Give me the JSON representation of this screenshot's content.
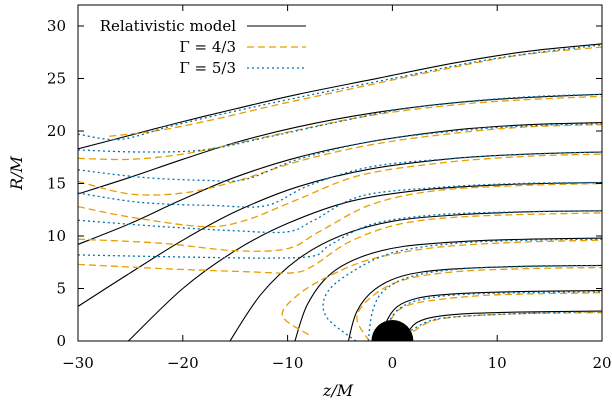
{
  "chart_data": {
    "type": "line",
    "xlabel": "z/M",
    "ylabel": "R/M",
    "xlim": [
      -30,
      20
    ],
    "ylim": [
      0,
      32
    ],
    "xticks": [
      -30,
      -20,
      -10,
      0,
      10,
      20
    ],
    "yticks": [
      0,
      5,
      10,
      15,
      20,
      25,
      30
    ],
    "xtick_labels": [
      "−30",
      "−20",
      "−10",
      "0",
      "10",
      "20"
    ],
    "ytick_labels": [
      "0",
      "5",
      "10",
      "15",
      "20",
      "25",
      "30"
    ],
    "grid": false,
    "legend_position": "top-left",
    "black_hole": {
      "center": [
        0,
        0
      ],
      "radius": 2,
      "color": "#000000"
    },
    "series": [
      {
        "name": "Relativistic model",
        "color": "#000000",
        "dash": "solid",
        "curves": [
          [
            [
              1.3,
              0
            ],
            [
              1.6,
              1.0
            ],
            [
              2.4,
              1.8
            ],
            [
              4,
              2.3
            ],
            [
              7,
              2.6
            ],
            [
              12,
              2.75
            ],
            [
              20,
              2.85
            ]
          ],
          [
            [
              -1.2,
              0
            ],
            [
              -0.6,
              1.8
            ],
            [
              0.5,
              3.3
            ],
            [
              2.5,
              4.1
            ],
            [
              6,
              4.5
            ],
            [
              12,
              4.7
            ],
            [
              20,
              4.8
            ]
          ],
          [
            [
              -4.2,
              0
            ],
            [
              -3.4,
              2.8
            ],
            [
              -1.7,
              4.9
            ],
            [
              1,
              6.2
            ],
            [
              5,
              6.8
            ],
            [
              12,
              7.1
            ],
            [
              20,
              7.2
            ]
          ],
          [
            [
              -9.3,
              0
            ],
            [
              -8.1,
              3.5
            ],
            [
              -6,
              6.3
            ],
            [
              -3,
              8
            ],
            [
              1,
              9
            ],
            [
              7,
              9.5
            ],
            [
              13,
              9.7
            ],
            [
              20,
              9.8
            ]
          ],
          [
            [
              -15.5,
              0
            ],
            [
              -12.5,
              4.5
            ],
            [
              -9,
              7.8
            ],
            [
              -5,
              10
            ],
            [
              0,
              11.4
            ],
            [
              6,
              12
            ],
            [
              13,
              12.3
            ],
            [
              20,
              12.4
            ]
          ],
          [
            [
              -25.2,
              0
            ],
            [
              -20,
              5
            ],
            [
              -15,
              8.6
            ],
            [
              -10,
              11.2
            ],
            [
              -4,
              13.3
            ],
            [
              3,
              14.4
            ],
            [
              11,
              14.9
            ],
            [
              20,
              15.1
            ]
          ],
          [
            [
              -30,
              3.3
            ],
            [
              -25,
              6.5
            ],
            [
              -20,
              9.6
            ],
            [
              -15,
              12.3
            ],
            [
              -9,
              14.7
            ],
            [
              -2,
              16.4
            ],
            [
              6,
              17.4
            ],
            [
              13,
              17.8
            ],
            [
              20,
              18
            ]
          ],
          [
            [
              -30,
              9.2
            ],
            [
              -25,
              11.2
            ],
            [
              -20,
              13.5
            ],
            [
              -15,
              15.6
            ],
            [
              -9,
              17.5
            ],
            [
              -2,
              19
            ],
            [
              6,
              20.1
            ],
            [
              13,
              20.6
            ],
            [
              20,
              20.8
            ]
          ],
          [
            [
              -30,
              14
            ],
            [
              -25,
              15.6
            ],
            [
              -20,
              17.3
            ],
            [
              -15,
              18.9
            ],
            [
              -9,
              20.4
            ],
            [
              -2,
              21.7
            ],
            [
              6,
              22.7
            ],
            [
              13,
              23.2
            ],
            [
              20,
              23.5
            ]
          ],
          [
            [
              -30,
              18.3
            ],
            [
              -25,
              19.6
            ],
            [
              -20,
              20.9
            ],
            [
              -15,
              22.1
            ],
            [
              -9,
              23.5
            ],
            [
              -2,
              24.9
            ],
            [
              6,
              26.5
            ],
            [
              13,
              27.6
            ],
            [
              20,
              28.3
            ]
          ]
        ]
      },
      {
        "name": "Γ = 4/3",
        "color": "#e69f00",
        "dash": "dashed",
        "curves": [
          [
            [
              2,
              0.9
            ],
            [
              3.5,
              1.8
            ],
            [
              6,
              2.3
            ],
            [
              12,
              2.6
            ],
            [
              20,
              2.7
            ]
          ],
          [
            [
              -0.7,
              0
            ],
            [
              -0.2,
              1.9
            ],
            [
              1,
              3.2
            ],
            [
              4,
              3.9
            ],
            [
              10,
              4.4
            ],
            [
              20,
              4.6
            ]
          ],
          [
            [
              -2.2,
              0
            ],
            [
              -3.4,
              2.2
            ],
            [
              -2,
              4.2
            ],
            [
              1,
              5.8
            ],
            [
              6,
              6.6
            ],
            [
              13,
              6.9
            ],
            [
              20,
              7
            ]
          ],
          [
            [
              -8,
              0.6
            ],
            [
              -10.5,
              2.4
            ],
            [
              -9,
              4.4
            ],
            [
              -6,
              6.2
            ],
            [
              -2,
              7.8
            ],
            [
              4,
              8.9
            ],
            [
              12,
              9.4
            ],
            [
              20,
              9.6
            ]
          ],
          [
            [
              -30,
              7.3
            ],
            [
              -22,
              6.9
            ],
            [
              -14,
              6.6
            ],
            [
              -9.5,
              6.5
            ],
            [
              -7.5,
              7.2
            ],
            [
              -4,
              9.5
            ],
            [
              1,
              11.2
            ],
            [
              8,
              11.9
            ],
            [
              20,
              12.2
            ]
          ],
          [
            [
              -30,
              9.7
            ],
            [
              -22,
              9.3
            ],
            [
              -15,
              8.6
            ],
            [
              -10,
              8.8
            ],
            [
              -7,
              10.4
            ],
            [
              -2,
              13
            ],
            [
              4,
              14.3
            ],
            [
              12,
              14.8
            ],
            [
              20,
              15
            ]
          ],
          [
            [
              -30,
              12.8
            ],
            [
              -25,
              11.8
            ],
            [
              -18,
              10.9
            ],
            [
              -14,
              11.5
            ],
            [
              -9,
              13.5
            ],
            [
              -3,
              15.8
            ],
            [
              5,
              17
            ],
            [
              13,
              17.6
            ],
            [
              20,
              17.8
            ]
          ],
          [
            [
              -30,
              15.2
            ],
            [
              -25,
              14
            ],
            [
              -20,
              14.1
            ],
            [
              -15,
              15.2
            ],
            [
              -9,
              17.1
            ],
            [
              -2,
              18.7
            ],
            [
              6,
              19.8
            ],
            [
              13,
              20.4
            ],
            [
              20,
              20.6
            ]
          ],
          [
            [
              -30,
              17.4
            ],
            [
              -25,
              17.3
            ],
            [
              -20,
              17.8
            ],
            [
              -15,
              18.8
            ],
            [
              -9,
              20.1
            ],
            [
              -2,
              21.5
            ],
            [
              6,
              22.5
            ],
            [
              13,
              23
            ],
            [
              20,
              23.3
            ]
          ],
          [
            [
              -27,
              19.5
            ],
            [
              -22,
              20.1
            ],
            [
              -17,
              21.1
            ],
            [
              -11,
              22.5
            ],
            [
              -4,
              24
            ],
            [
              4,
              25.7
            ],
            [
              12,
              27.2
            ],
            [
              20,
              28
            ]
          ]
        ]
      },
      {
        "name": "Γ = 5/3",
        "color": "#0072b2",
        "dash": "dotted",
        "curves": [
          [
            [
              1.8,
              1.0
            ],
            [
              3.5,
              1.9
            ],
            [
              6,
              2.3
            ],
            [
              12,
              2.6
            ],
            [
              20,
              2.8
            ]
          ],
          [
            [
              -1.4,
              0
            ],
            [
              -0.5,
              1.6
            ],
            [
              0.7,
              3.1
            ],
            [
              3,
              4
            ],
            [
              8,
              4.5
            ],
            [
              20,
              4.7
            ]
          ],
          [
            [
              -2.3,
              0
            ],
            [
              -1.9,
              2.8
            ],
            [
              -0.8,
              4.8
            ],
            [
              2,
              6.2
            ],
            [
              7,
              6.9
            ],
            [
              14,
              7.1
            ],
            [
              20,
              7.2
            ]
          ],
          [
            [
              -3.5,
              0
            ],
            [
              -6.3,
              2.3
            ],
            [
              -6.3,
              4.5
            ],
            [
              -4,
              6.5
            ],
            [
              0,
              8.4
            ],
            [
              6,
              9.3
            ],
            [
              13,
              9.6
            ],
            [
              20,
              9.7
            ]
          ],
          [
            [
              -30,
              8.2
            ],
            [
              -20,
              8.0
            ],
            [
              -12,
              7.9
            ],
            [
              -7.5,
              8.1
            ],
            [
              -6,
              9.1
            ],
            [
              -2,
              11.1
            ],
            [
              4,
              12
            ],
            [
              12,
              12.3
            ],
            [
              20,
              12.4
            ]
          ],
          [
            [
              -30,
              11.5
            ],
            [
              -22,
              10.9
            ],
            [
              -15,
              10.5
            ],
            [
              -10,
              10.4
            ],
            [
              -7.5,
              11.5
            ],
            [
              -3,
              13.8
            ],
            [
              4,
              14.6
            ],
            [
              12,
              15
            ],
            [
              20,
              15.1
            ]
          ],
          [
            [
              -30,
              14.1
            ],
            [
              -24,
              13.2
            ],
            [
              -17,
              12.9
            ],
            [
              -12,
              12.9
            ],
            [
              -8,
              14.8
            ],
            [
              -2,
              16.6
            ],
            [
              6,
              17.4
            ],
            [
              13,
              17.8
            ],
            [
              20,
              18
            ]
          ],
          [
            [
              -30,
              16.3
            ],
            [
              -24,
              15.6
            ],
            [
              -18,
              15.3
            ],
            [
              -14,
              15.4
            ],
            [
              -9,
              17.3
            ],
            [
              -2,
              19
            ],
            [
              6,
              20
            ],
            [
              13,
              20.5
            ],
            [
              20,
              20.7
            ]
          ],
          [
            [
              -30,
              18.2
            ],
            [
              -24,
              18
            ],
            [
              -18,
              18.2
            ],
            [
              -12,
              19.4
            ],
            [
              -6,
              20.7
            ],
            [
              1,
              22.1
            ],
            [
              8,
              22.9
            ],
            [
              14,
              23.3
            ],
            [
              20,
              23.5
            ]
          ],
          [
            [
              -30,
              19.7
            ],
            [
              -26,
              19.2
            ],
            [
              -21,
              20.5
            ],
            [
              -15,
              21.9
            ],
            [
              -8,
              23.4
            ],
            [
              0,
              25
            ],
            [
              8,
              26.6
            ],
            [
              14,
              27.5
            ],
            [
              20,
              28.2
            ]
          ]
        ]
      }
    ]
  }
}
